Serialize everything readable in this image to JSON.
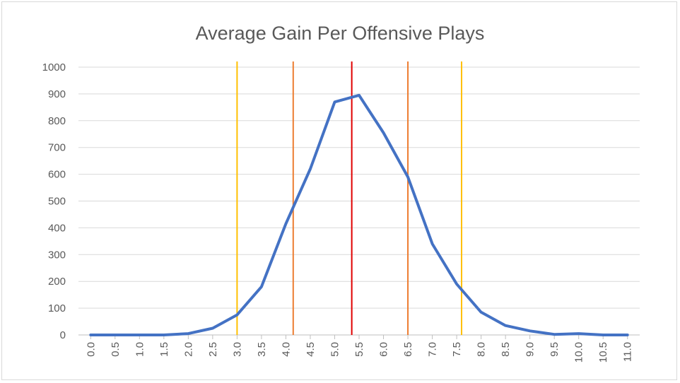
{
  "chart_data": {
    "type": "line",
    "title": "Average Gain Per Offensive Plays",
    "xlabel": "",
    "ylabel": "",
    "ylim": [
      0,
      1000
    ],
    "yticks": [
      0,
      100,
      200,
      300,
      400,
      500,
      600,
      700,
      800,
      900,
      1000
    ],
    "categories": [
      "0.0",
      "0.5",
      "1.0",
      "1.5",
      "2.0",
      "2.5",
      "3.0",
      "3.5",
      "4.0",
      "4.5",
      "5.0",
      "5.5",
      "6.0",
      "6.5",
      "7.0",
      "7.5",
      "8.0",
      "8.5",
      "9.0",
      "9.5",
      "10.0",
      "10.5",
      "11.0"
    ],
    "series": [
      {
        "color": "#4472c4",
        "values": [
          0,
          0,
          0,
          0,
          5,
          25,
          75,
          180,
          415,
          620,
          870,
          895,
          755,
          590,
          340,
          190,
          85,
          35,
          15,
          2,
          5,
          0,
          0
        ]
      }
    ],
    "reference_lines": [
      {
        "x": 3.0,
        "color": "#ffc000"
      },
      {
        "x": 4.15,
        "color": "#ed7d31"
      },
      {
        "x": 5.35,
        "color": "#e00000"
      },
      {
        "x": 6.5,
        "color": "#ed7d31"
      },
      {
        "x": 7.6,
        "color": "#ffc000"
      }
    ],
    "grid": true,
    "legend": "none"
  }
}
